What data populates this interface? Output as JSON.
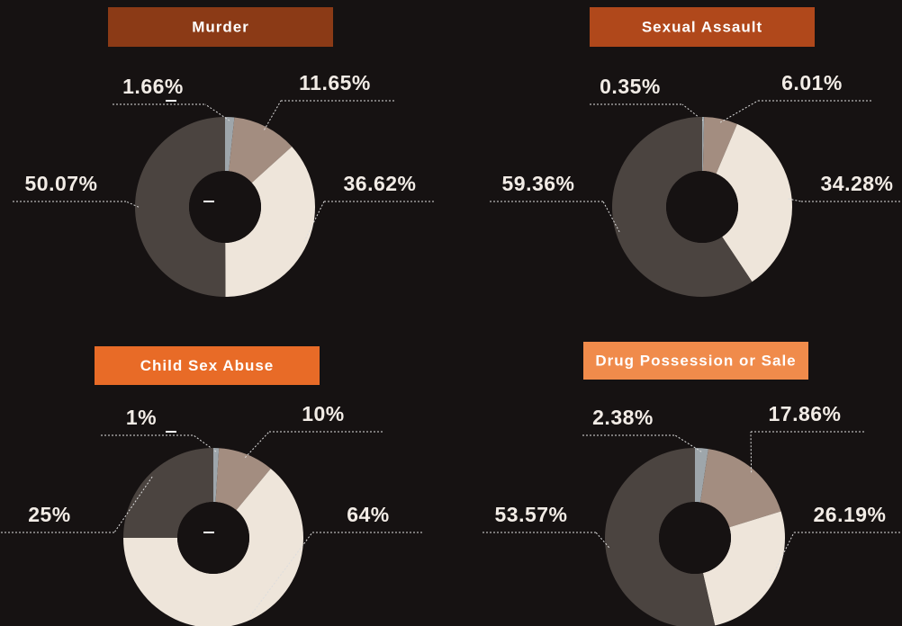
{
  "chart_data": [
    {
      "type": "pie",
      "title": "Murder",
      "values": [
        1.66,
        11.65,
        36.62,
        50.07
      ],
      "value_labels": [
        "1.66%",
        "11.65%",
        "36.62%",
        "50.07%"
      ],
      "colors": [
        "#9ea6ab",
        "#a38d80",
        "#eee5da",
        "#4b4440"
      ],
      "title_color": "#8b3a16"
    },
    {
      "type": "pie",
      "title": "Sexual Assault",
      "values": [
        0.35,
        6.01,
        34.28,
        59.36
      ],
      "value_labels": [
        "0.35%",
        "6.01%",
        "34.28%",
        "59.36%"
      ],
      "colors": [
        "#9ea6ab",
        "#a38d80",
        "#eee5da",
        "#4b4440"
      ],
      "title_color": "#b0481b"
    },
    {
      "type": "pie",
      "title": "Child Sex Abuse",
      "values": [
        1,
        10,
        64,
        25
      ],
      "value_labels": [
        "1%",
        "10%",
        "64%",
        "25%"
      ],
      "colors": [
        "#9ea6ab",
        "#a38d80",
        "#eee5da",
        "#4b4440"
      ],
      "title_color": "#e86b27"
    },
    {
      "type": "pie",
      "title": "Drug Possession or Sale",
      "values": [
        2.38,
        17.86,
        26.19,
        53.57
      ],
      "value_labels": [
        "2.38%",
        "17.86%",
        "26.19%",
        "53.57%"
      ],
      "colors": [
        "#9ea6ab",
        "#a38d80",
        "#eee5da",
        "#4b4440"
      ],
      "title_color": "#f08b4b"
    }
  ]
}
